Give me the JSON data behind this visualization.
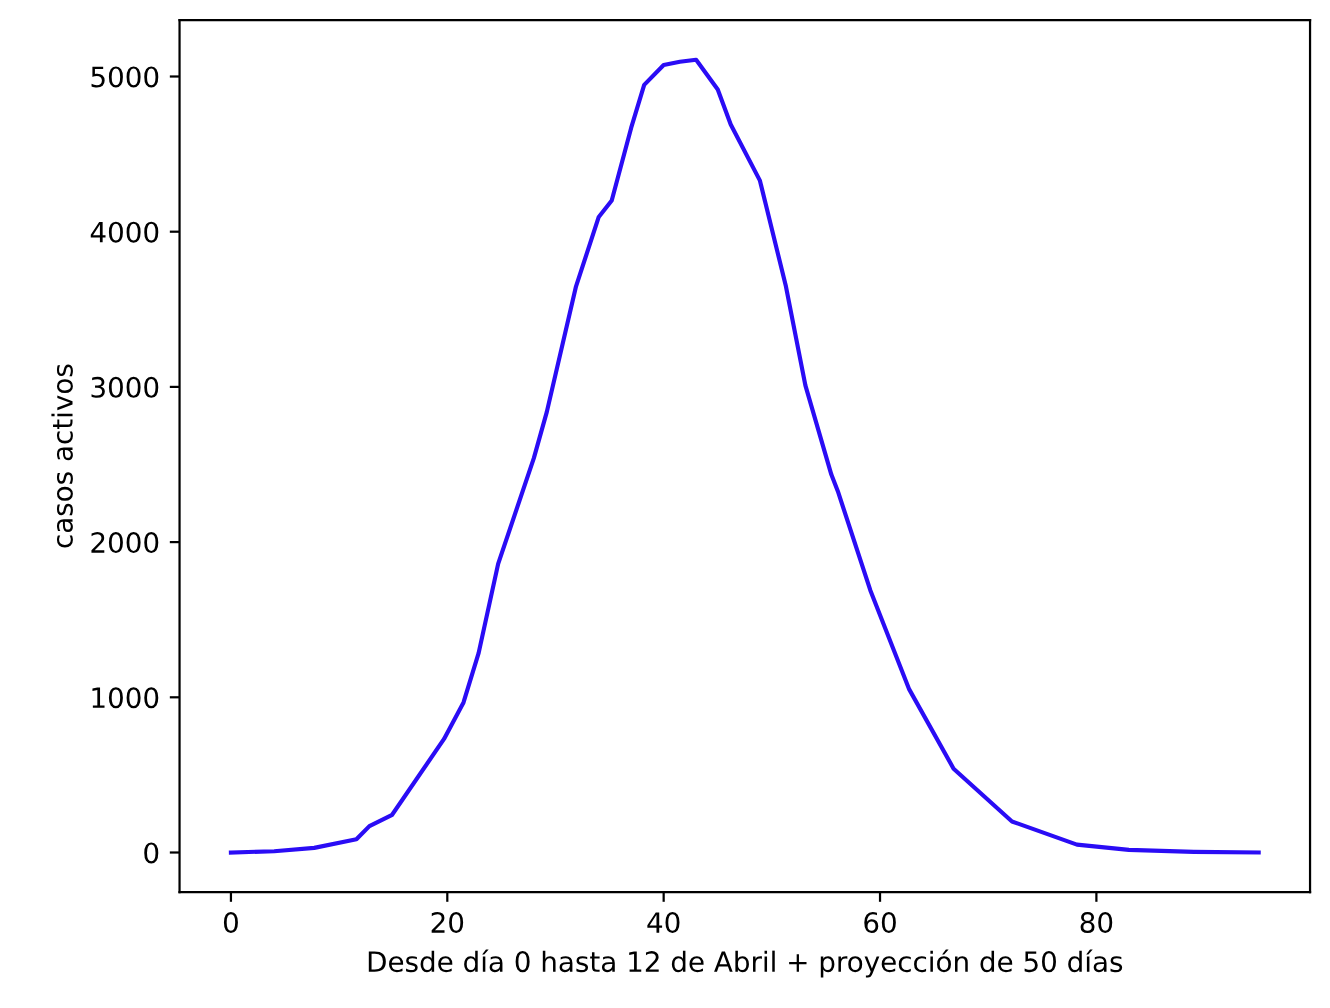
{
  "chart_data": {
    "type": "line",
    "xlabel": "Desde día 0 hasta 12 de Abril + proyección de 50 días",
    "ylabel": "casos activos",
    "series": [
      {
        "color": "#2a0cf5",
        "x": [
          0,
          4,
          7.7,
          11.6,
          12.8,
          14.9,
          19.7,
          21.5,
          22.9,
          24.7,
          28,
          29.2,
          31.9,
          34,
          35.2,
          37,
          38.2,
          40,
          41.5,
          43,
          45,
          46.2,
          48.9,
          51.3,
          53.1,
          55.5,
          56.1,
          59.1,
          62.7,
          66.8,
          72.2,
          78.2,
          83,
          89,
          95
        ],
        "values": [
          0,
          8,
          30,
          85,
          170,
          243,
          732,
          967,
          1286,
          1860,
          2541,
          2839,
          3648,
          4095,
          4201,
          4670,
          4946,
          5074,
          5095,
          5108,
          4916,
          4691,
          4329,
          3648,
          3010,
          2435,
          2328,
          1690,
          1051,
          540,
          200,
          51,
          17,
          4,
          0
        ]
      }
    ],
    "xlim": [
      -4.75,
      99.75
    ],
    "ylim": [
      -255,
      5363
    ],
    "xticks": [
      0,
      20,
      40,
      60,
      80
    ],
    "yticks": [
      0,
      1000,
      2000,
      3000,
      4000,
      5000
    ],
    "grid": false,
    "legend": false,
    "marker": "none",
    "line_style": "solid"
  }
}
